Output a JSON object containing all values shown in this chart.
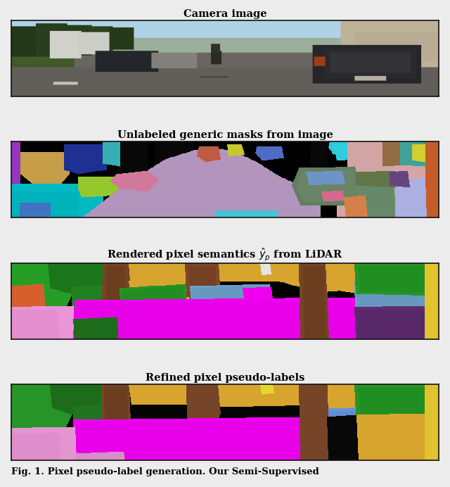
{
  "title1": "Camera image",
  "title2": "Unlabeled generic masks from image",
  "title3": "Rendered pixel semantics $\\hat{y}_p$ from LiDAR",
  "title4": "Refined pixel pseudo-labels",
  "caption": "Fig. 1. Pixel pseudo-label generation. Our Semi-Supervised",
  "bg_color": "#ececec",
  "figsize": [
    6.4,
    6.92
  ],
  "dpi": 100
}
